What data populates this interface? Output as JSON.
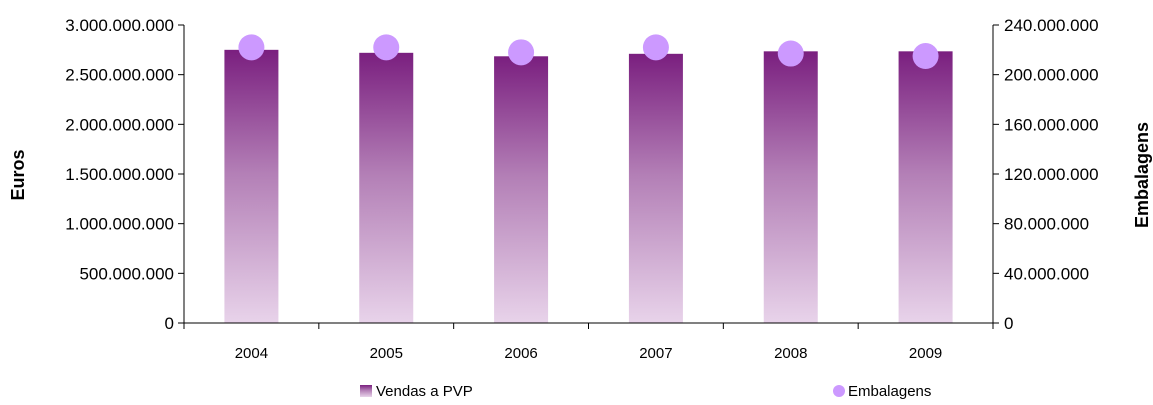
{
  "chart_data": {
    "type": "bar+scatter",
    "categories": [
      "2004",
      "2005",
      "2006",
      "2007",
      "2008",
      "2009"
    ],
    "series": [
      {
        "name": "Vendas a PVP",
        "kind": "bar",
        "axis": "left",
        "values": [
          2750000000,
          2720000000,
          2685000000,
          2710000000,
          2735000000,
          2735000000
        ],
        "color_top": "#7a1f7f",
        "color_bottom": "#e8d3ea"
      },
      {
        "name": "Embalagens",
        "kind": "scatter",
        "axis": "right",
        "values": [
          222000000,
          222000000,
          218000000,
          222000000,
          217000000,
          215000000
        ],
        "color": "#cc99ff"
      }
    ],
    "y_left": {
      "label": "Euros",
      "ylim": [
        0,
        3000000000
      ],
      "ticks": [
        0,
        500000000,
        1000000000,
        1500000000,
        2000000000,
        2500000000,
        3000000000
      ],
      "tick_labels": [
        "0",
        "500.000.000",
        "1.000.000.000",
        "1.500.000.000",
        "2.000.000.000",
        "2.500.000.000",
        "3.000.000.000"
      ]
    },
    "y_right": {
      "label": "Embalagens",
      "ylim": [
        0,
        240000000
      ],
      "ticks": [
        0,
        40000000,
        80000000,
        120000000,
        160000000,
        200000000,
        240000000
      ],
      "tick_labels": [
        "0",
        "40.000.000",
        "80.000.000",
        "120.000.000",
        "160.000.000",
        "200.000.000",
        "240.000.000"
      ]
    },
    "grid": false,
    "legend_position": "bottom"
  }
}
